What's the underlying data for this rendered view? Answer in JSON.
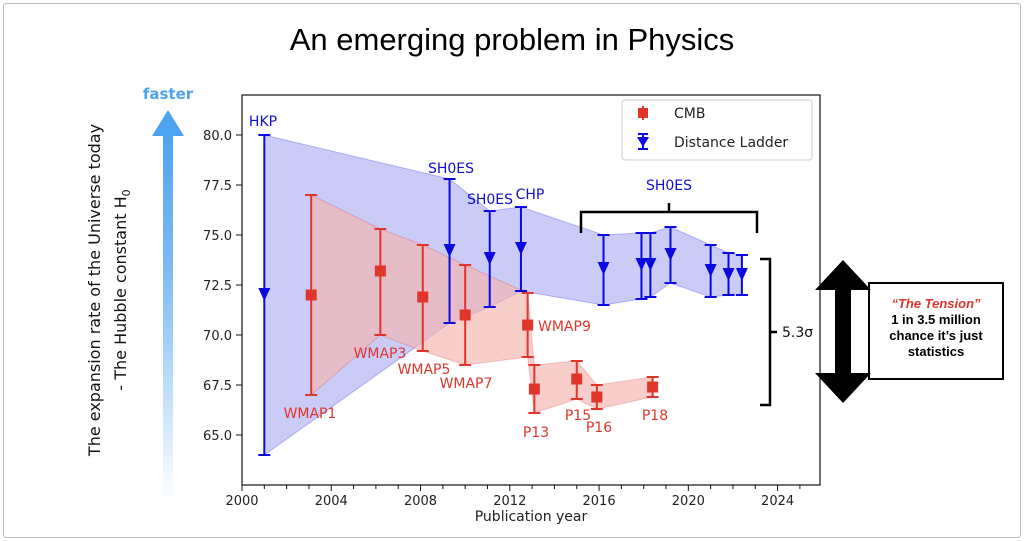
{
  "title": "An emerging problem in Physics",
  "arrow_label": "faster",
  "tension": {
    "title": "“The Tension”",
    "text": "1 in 3.5 million chance it’s just statistics",
    "sigma": "5.3σ"
  },
  "colors": {
    "cmb": "#e0352b",
    "distance_ladder": "#0a0ae0",
    "faster_arrow": "#4da3f0",
    "cmb_fill": "#f2b4ae",
    "dl_fill": "#b9b9f5"
  },
  "chart_data": {
    "type": "scatter",
    "title": "",
    "xlabel": "Publication year",
    "ylabel_line1": "The expansion rate of the Universe today",
    "ylabel_line2": "- The Hubble constant H",
    "ylabel_sub": "0",
    "xlim": [
      2000,
      2025.9
    ],
    "ylim": [
      62.5,
      82
    ],
    "xticks": [
      2000,
      2004,
      2008,
      2012,
      2016,
      2020,
      2024
    ],
    "yticks": [
      "65.0",
      "67.5",
      "70.0",
      "72.5",
      "75.0",
      "77.5",
      "80.0"
    ],
    "grid": false,
    "legend_position": "top-right",
    "group_label": "SH0ES",
    "series": [
      {
        "name": "CMB",
        "marker": "square",
        "points": [
          {
            "x": 2003.1,
            "y": 72.0,
            "lo": 67.0,
            "hi": 77.0,
            "label": "WMAP1"
          },
          {
            "x": 2006.2,
            "y": 73.2,
            "lo": 70.0,
            "hi": 75.3,
            "label": "WMAP3"
          },
          {
            "x": 2008.1,
            "y": 71.9,
            "lo": 69.2,
            "hi": 74.5,
            "label": "WMAP5"
          },
          {
            "x": 2010.0,
            "y": 71.0,
            "lo": 68.5,
            "hi": 73.5,
            "label": "WMAP7"
          },
          {
            "x": 2012.8,
            "y": 70.5,
            "lo": 68.9,
            "hi": 72.1,
            "label": "WMAP9"
          },
          {
            "x": 2013.1,
            "y": 67.3,
            "lo": 66.1,
            "hi": 68.5,
            "label": "P13"
          },
          {
            "x": 2015.0,
            "y": 67.8,
            "lo": 66.8,
            "hi": 68.7,
            "label": "P15"
          },
          {
            "x": 2015.9,
            "y": 66.9,
            "lo": 66.3,
            "hi": 67.5,
            "label": "P16"
          },
          {
            "x": 2018.4,
            "y": 67.4,
            "lo": 66.9,
            "hi": 67.9,
            "label": "P18"
          }
        ]
      },
      {
        "name": "Distance Ladder",
        "marker": "triangle-down",
        "points": [
          {
            "x": 2001.0,
            "y": 72.0,
            "lo": 64.0,
            "hi": 80.0,
            "label": "HKP"
          },
          {
            "x": 2009.3,
            "y": 74.2,
            "lo": 70.6,
            "hi": 77.8,
            "label": "SH0ES"
          },
          {
            "x": 2011.1,
            "y": 73.8,
            "lo": 71.4,
            "hi": 76.2,
            "label": "SH0ES"
          },
          {
            "x": 2012.5,
            "y": 74.3,
            "lo": 72.2,
            "hi": 76.4,
            "label": "CHP"
          },
          {
            "x": 2016.2,
            "y": 73.3,
            "lo": 71.5,
            "hi": 75.0,
            "label": ""
          },
          {
            "x": 2017.9,
            "y": 73.5,
            "lo": 71.8,
            "hi": 75.1,
            "label": ""
          },
          {
            "x": 2018.3,
            "y": 73.5,
            "lo": 71.9,
            "hi": 75.1,
            "label": ""
          },
          {
            "x": 2019.2,
            "y": 74.0,
            "lo": 72.6,
            "hi": 75.4,
            "label": ""
          },
          {
            "x": 2021.0,
            "y": 73.2,
            "lo": 71.9,
            "hi": 74.5,
            "label": ""
          },
          {
            "x": 2021.8,
            "y": 73.0,
            "lo": 72.0,
            "hi": 74.1,
            "label": ""
          },
          {
            "x": 2022.4,
            "y": 73.0,
            "lo": 72.0,
            "hi": 74.0,
            "label": ""
          }
        ]
      }
    ]
  }
}
